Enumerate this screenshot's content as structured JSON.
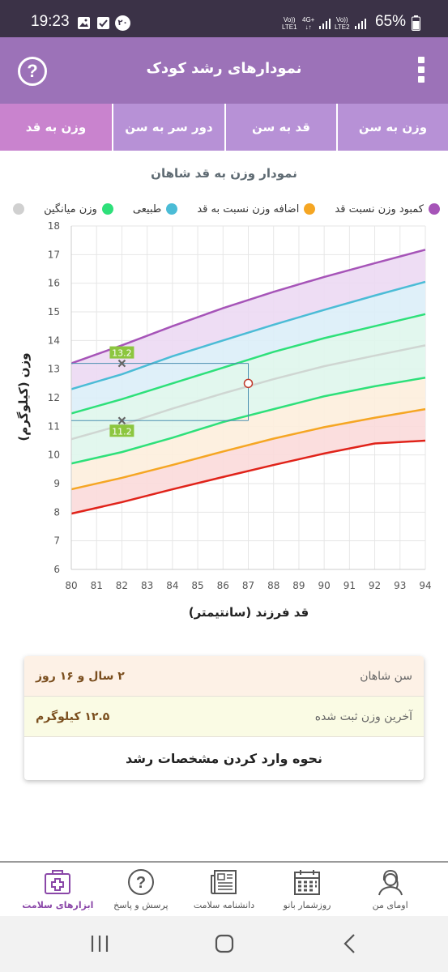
{
  "status_bar": {
    "time": "19:23",
    "notification_badge": "۲۰",
    "sim1": {
      "line1": "Vo))",
      "line2": "LTE1"
    },
    "net": {
      "line1": "4G+",
      "line2": "↓↑"
    },
    "sim2": {
      "line1": "Vo))",
      "line2": "LTE2"
    },
    "battery": "65%"
  },
  "header": {
    "title": "نمودارهای رشد کودک",
    "help_symbol": "?"
  },
  "tabs": [
    "وزن به سن",
    "قد به سن",
    "دور سر به سن",
    "وزن به قد"
  ],
  "active_tab": 3,
  "chart_data": {
    "type": "line",
    "title": "نمودار وزن به قد شاهان",
    "xlabel": "قد فرزند (سانتیمتر)",
    "ylabel": "وزن (کیلوگرم)",
    "xlim": [
      80,
      94
    ],
    "ylim": [
      6,
      18
    ],
    "x_ticks": [
      "80",
      "81",
      "82",
      "83",
      "84",
      "85",
      "86",
      "87",
      "88",
      "89",
      "90",
      "91",
      "92",
      "93",
      "94"
    ],
    "y_ticks": [
      "6",
      "7",
      "8",
      "9",
      "10",
      "11",
      "12",
      "13",
      "14",
      "15",
      "16",
      "17",
      "18"
    ],
    "grid": true,
    "legend_position": "top",
    "legend": [
      {
        "name": "کمبود وزن نسبت قد",
        "color": "#a654b8"
      },
      {
        "name": "اضافه وزن نسبت به قد",
        "color": "#f5a623"
      },
      {
        "name": "طبیعی",
        "color": "#4bbcd6"
      },
      {
        "name": "وزن میانگین",
        "color": "#2ee07a"
      },
      {
        "name": "",
        "color": "#d0d0d0"
      }
    ],
    "x": [
      80,
      82,
      84,
      86,
      88,
      90,
      92,
      94
    ],
    "series": [
      {
        "color": "#a654b8",
        "fill": "#ecd9f3",
        "values": [
          13.2,
          13.83,
          14.5,
          15.13,
          15.7,
          16.22,
          16.7,
          17.17
        ]
      },
      {
        "color": "#4bbcd6",
        "fill": "#dceef8",
        "values": [
          12.3,
          12.82,
          13.45,
          14.0,
          14.55,
          15.07,
          15.57,
          16.05
        ]
      },
      {
        "color": "#2ee07a",
        "fill": "#dff6ec",
        "values": [
          11.45,
          11.95,
          12.5,
          13.05,
          13.6,
          14.08,
          14.5,
          14.92
        ]
      },
      {
        "color": "#cfd6d2",
        "fill": "#dff6ec",
        "values": [
          10.55,
          11.05,
          11.62,
          12.15,
          12.65,
          13.1,
          13.47,
          13.83
        ]
      },
      {
        "color": "#2ee07a",
        "fill": "#fdeedd",
        "values": [
          9.7,
          10.1,
          10.6,
          11.15,
          11.6,
          12.05,
          12.4,
          12.7
        ]
      },
      {
        "color": "#f5a623",
        "fill": "#fbdada",
        "values": [
          8.8,
          9.2,
          9.65,
          10.12,
          10.57,
          10.97,
          11.3,
          11.6
        ]
      },
      {
        "color": "#e0231a",
        "fill": "#ffffff",
        "values": [
          7.95,
          8.35,
          8.8,
          9.23,
          9.65,
          10.05,
          10.4,
          10.5
        ]
      }
    ],
    "marker": {
      "x": 87,
      "y": 12.5
    },
    "reference_points": [
      {
        "x": 82,
        "y": 13.2,
        "label": "13.2"
      },
      {
        "x": 82,
        "y": 11.2,
        "label": "11.2"
      }
    ]
  },
  "info": {
    "age_label": "سن شاهان",
    "age_value": "۲ سال و ۱۶ روز",
    "weight_label": "آخرین وزن ثبت شده",
    "weight_value": "۱۲.۵ کیلوگرم",
    "link": "نحوه وارد کردن مشخصات رشد"
  },
  "bottom_nav": [
    {
      "label": "ابزارهای سلامت",
      "icon": "health-kit-icon",
      "active": true
    },
    {
      "label": "پرسش و پاسخ",
      "icon": "question-icon"
    },
    {
      "label": "دانشنامه سلامت",
      "icon": "newspaper-icon"
    },
    {
      "label": "روزشمار بانو",
      "icon": "calendar-icon"
    },
    {
      "label": "اومای من",
      "icon": "avatar-icon"
    }
  ]
}
